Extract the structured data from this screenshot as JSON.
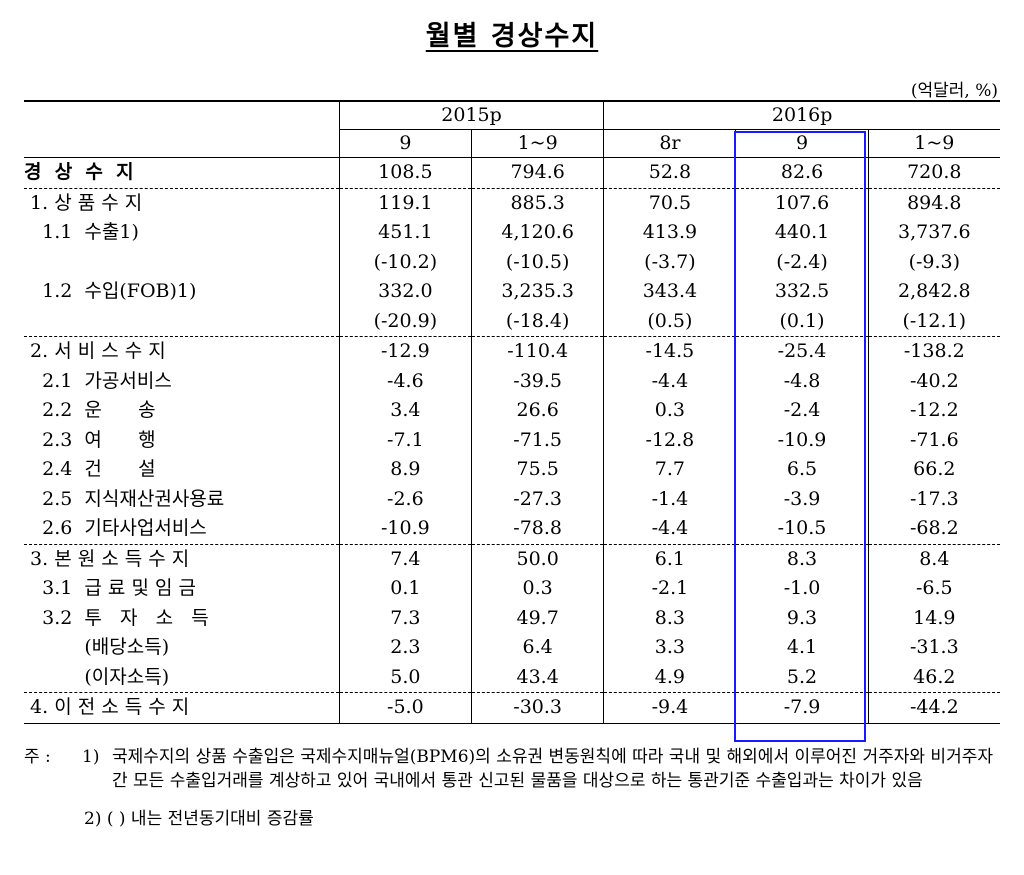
{
  "title": "월별 경상수지",
  "unit": "(억달러, %)",
  "header": {
    "year1": "2015p",
    "year2": "2016p",
    "cols": [
      "9",
      "1~9",
      "8r",
      "9",
      "1~9"
    ]
  },
  "rows": [
    {
      "label": "경  상  수  지",
      "values": [
        "108.5",
        "794.6",
        "52.8",
        "82.6",
        "720.8"
      ]
    },
    {
      "label": " 1. 상 품 수 지",
      "values": [
        "119.1",
        "885.3",
        "70.5",
        "107.6",
        "894.8"
      ]
    },
    {
      "label": "   1.1  수출1)",
      "values": [
        "451.1",
        "4,120.6",
        "413.9",
        "440.1",
        "3,737.6"
      ]
    },
    {
      "label": "",
      "values": [
        "(-10.2)",
        "(-10.5)",
        "(-3.7)",
        "(-2.4)",
        "(-9.3)"
      ]
    },
    {
      "label": "   1.2  수입(FOB)1)",
      "values": [
        "332.0",
        "3,235.3",
        "343.4",
        "332.5",
        "2,842.8"
      ]
    },
    {
      "label": "",
      "values": [
        "(-20.9)",
        "(-18.4)",
        "(0.5)",
        "(0.1)",
        "(-12.1)"
      ]
    },
    {
      "label": " 2. 서 비 스 수 지",
      "values": [
        "-12.9",
        "-110.4",
        "-14.5",
        "-25.4",
        "-138.2"
      ]
    },
    {
      "label": "   2.1  가공서비스",
      "values": [
        "-4.6",
        "-39.5",
        "-4.4",
        "-4.8",
        "-40.2"
      ]
    },
    {
      "label": "   2.2  운      송",
      "values": [
        "3.4",
        "26.6",
        "0.3",
        "-2.4",
        "-12.2"
      ]
    },
    {
      "label": "   2.3  여      행",
      "values": [
        "-7.1",
        "-71.5",
        "-12.8",
        "-10.9",
        "-71.6"
      ]
    },
    {
      "label": "   2.4  건      설",
      "values": [
        "8.9",
        "75.5",
        "7.7",
        "6.5",
        "66.2"
      ]
    },
    {
      "label": "   2.5  지식재산권사용료",
      "values": [
        "-2.6",
        "-27.3",
        "-1.4",
        "-3.9",
        "-17.3"
      ]
    },
    {
      "label": "   2.6  기타사업서비스",
      "values": [
        "-10.9",
        "-78.8",
        "-4.4",
        "-10.5",
        "-68.2"
      ]
    },
    {
      "label": " 3. 본 원 소 득 수 지",
      "values": [
        "7.4",
        "50.0",
        "6.1",
        "8.3",
        "8.4"
      ]
    },
    {
      "label": "   3.1  급 료 및 임 금",
      "values": [
        "0.1",
        "0.3",
        "-2.1",
        "-1.0",
        "-6.5"
      ]
    },
    {
      "label": "   3.2  투   자   소   득",
      "values": [
        "7.3",
        "49.7",
        "8.3",
        "9.3",
        "14.9"
      ]
    },
    {
      "label": "          (배당소득)",
      "values": [
        "2.3",
        "6.4",
        "3.3",
        "4.1",
        "-31.3"
      ]
    },
    {
      "label": "          (이자소득)",
      "values": [
        "5.0",
        "43.4",
        "4.9",
        "5.2",
        "46.2"
      ]
    },
    {
      "label": " 4. 이 전 소 득 수 지",
      "values": [
        "-5.0",
        "-30.3",
        "-9.4",
        "-7.9",
        "-44.2"
      ]
    }
  ],
  "notes": {
    "mark": "주 : ",
    "n1_num": "1)",
    "n1_text": "국제수지의 상품 수출입은 국제수지매뉴얼(BPM6)의 소유권 변동원칙에 따라 국내 및 해외에서 이루어진 거주자와 비거주자 간 모든 수출입거래를 계상하고 있어 국내에서 통관 신고된 물품을 대상으로 하는 통관기준 수출입과는 차이가 있음",
    "n2": "2) (  ) 내는 전년동기대비 증감률"
  }
}
